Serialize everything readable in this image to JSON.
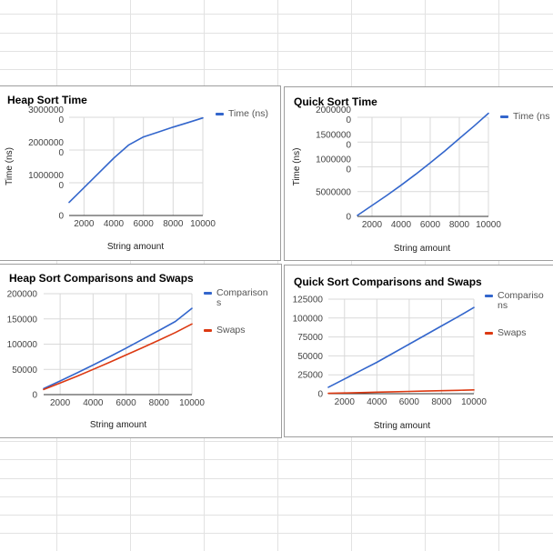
{
  "colors": {
    "series_blue": "#3366cc",
    "series_red": "#dc3912",
    "gridline": "#d9d9d9",
    "baseline": "#333333",
    "card_border": "#9e9e9e",
    "sheet_gridline": "#e2e2e2"
  },
  "chart_data": [
    {
      "type": "line",
      "title": "Heap Sort Time",
      "xlabel": "String amount",
      "ylabel": "Time (ns)",
      "xlim": [
        1000,
        10000
      ],
      "ylim": [
        0,
        3000000
      ],
      "xticks": [
        2000,
        4000,
        6000,
        8000,
        10000
      ],
      "xtick_labels": [
        "2000",
        "4000",
        "6000",
        "8000",
        "10000"
      ],
      "yticks": [
        0,
        1000000,
        2000000,
        3000000
      ],
      "ytick_labels": [
        [
          "0"
        ],
        [
          "1000000",
          "0"
        ],
        [
          "2000000",
          "0"
        ],
        [
          "3000000",
          "0"
        ]
      ],
      "legend": "right",
      "grid": true,
      "series": [
        {
          "name": "Time (ns)",
          "legend_lines": [
            "Time (ns)"
          ],
          "color": "#3366cc",
          "x": [
            1000,
            2000,
            3000,
            4000,
            5000,
            6000,
            7000,
            8000,
            9000,
            10000
          ],
          "y": [
            400000,
            850000,
            1300000,
            1750000,
            2150000,
            2400000,
            2550000,
            2700000,
            2840000,
            2980000
          ]
        }
      ]
    },
    {
      "type": "line",
      "title": "Quick Sort Time",
      "xlabel": "String amount",
      "ylabel": "Time (ns)",
      "xlim": [
        1000,
        10000
      ],
      "ylim": [
        0,
        20000000
      ],
      "xticks": [
        2000,
        4000,
        6000,
        8000,
        10000
      ],
      "xtick_labels": [
        "2000",
        "4000",
        "6000",
        "8000",
        "10000"
      ],
      "yticks": [
        0,
        5000000,
        10000000,
        15000000,
        20000000
      ],
      "ytick_labels": [
        [
          "0"
        ],
        [
          "5000000"
        ],
        [
          "1000000",
          "0"
        ],
        [
          "1500000",
          "0"
        ],
        [
          "2000000",
          "0"
        ]
      ],
      "legend": "right",
      "grid": true,
      "series": [
        {
          "name": "Time (ns)",
          "legend_lines": [
            "Time (ns"
          ],
          "color": "#3366cc",
          "x": [
            1000,
            2000,
            3000,
            4000,
            5000,
            6000,
            7000,
            8000,
            9000,
            10000
          ],
          "y": [
            200000,
            2200000,
            4200000,
            6300000,
            8500000,
            10800000,
            13200000,
            15700000,
            18200000,
            20800000
          ]
        }
      ]
    },
    {
      "type": "line",
      "title": "Heap Sort Comparisons and Swaps",
      "xlabel": "String amount",
      "ylabel": "",
      "xlim": [
        1000,
        10000
      ],
      "ylim": [
        0,
        200000
      ],
      "xticks": [
        2000,
        4000,
        6000,
        8000,
        10000
      ],
      "xtick_labels": [
        "2000",
        "4000",
        "6000",
        "8000",
        "10000"
      ],
      "yticks": [
        0,
        50000,
        100000,
        150000,
        200000
      ],
      "ytick_labels": [
        [
          "0"
        ],
        [
          "50000"
        ],
        [
          "100000"
        ],
        [
          "150000"
        ],
        [
          "200000"
        ]
      ],
      "legend": "right",
      "grid": true,
      "series": [
        {
          "name": "Comparisons",
          "legend_lines": [
            "Comparison",
            "s"
          ],
          "color": "#3366cc",
          "x": [
            1000,
            2000,
            3000,
            4000,
            5000,
            6000,
            7000,
            8000,
            9000,
            10000
          ],
          "y": [
            12000,
            27000,
            42500,
            58500,
            75000,
            92000,
            109500,
            127000,
            145000,
            171000
          ]
        },
        {
          "name": "Swaps",
          "legend_lines": [
            "Swaps"
          ],
          "color": "#dc3912",
          "x": [
            1000,
            2000,
            3000,
            4000,
            5000,
            6000,
            7000,
            8000,
            9000,
            10000
          ],
          "y": [
            10000,
            23000,
            36000,
            50000,
            64000,
            78500,
            93000,
            108000,
            123000,
            140000
          ]
        }
      ]
    },
    {
      "type": "line",
      "title": "Quick Sort Comparisons and Swaps",
      "xlabel": "String amount",
      "ylabel": "",
      "xlim": [
        1000,
        10000
      ],
      "ylim": [
        0,
        125000
      ],
      "xticks": [
        2000,
        4000,
        6000,
        8000,
        10000
      ],
      "xtick_labels": [
        "2000",
        "4000",
        "6000",
        "8000",
        "10000"
      ],
      "yticks": [
        0,
        25000,
        50000,
        75000,
        100000,
        125000
      ],
      "ytick_labels": [
        [
          "0"
        ],
        [
          "25000"
        ],
        [
          "50000"
        ],
        [
          "75000"
        ],
        [
          "100000"
        ],
        [
          "125000"
        ]
      ],
      "legend": "right",
      "grid": true,
      "series": [
        {
          "name": "Comparisons",
          "legend_lines": [
            "Compariso",
            "ns"
          ],
          "color": "#3366cc",
          "x": [
            1000,
            2000,
            3000,
            4000,
            5000,
            6000,
            7000,
            8000,
            9000,
            10000
          ],
          "y": [
            8500,
            19500,
            30500,
            41500,
            53500,
            65500,
            77500,
            89500,
            101500,
            114000
          ]
        },
        {
          "name": "Swaps",
          "legend_lines": [
            "Swaps"
          ],
          "color": "#dc3912",
          "x": [
            1000,
            2000,
            3000,
            4000,
            5000,
            6000,
            7000,
            8000,
            9000,
            10000
          ],
          "y": [
            500,
            1000,
            1500,
            2000,
            2500,
            3000,
            3500,
            4000,
            4500,
            5000
          ]
        }
      ]
    }
  ]
}
